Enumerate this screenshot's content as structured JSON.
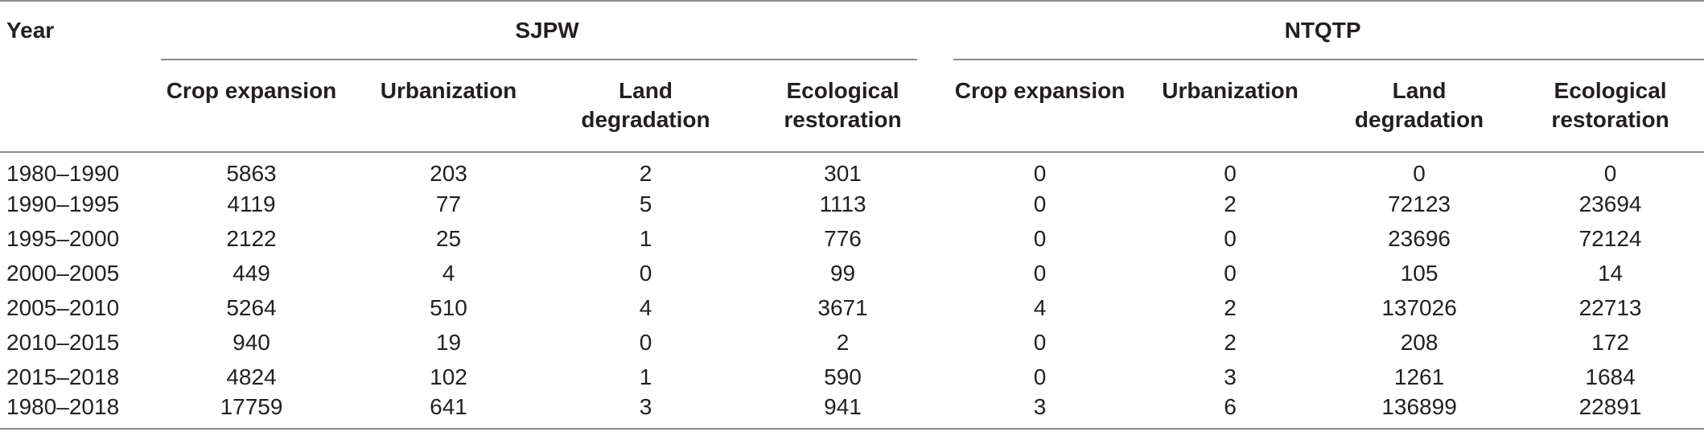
{
  "table": {
    "year_header": "Year",
    "groups": [
      {
        "label": "SJPW"
      },
      {
        "label": "NTQTP"
      }
    ],
    "subheaders": [
      [
        "Crop expansion"
      ],
      [
        "Urbanization"
      ],
      [
        "Land",
        "degradation"
      ],
      [
        "Ecological",
        "restoration"
      ],
      [
        "Crop expansion"
      ],
      [
        "Urbanization"
      ],
      [
        "Land",
        "degradation"
      ],
      [
        "Ecological",
        "restoration"
      ]
    ],
    "rows": [
      {
        "year": "1980–1990",
        "values": [
          "5863",
          "203",
          "2",
          "301",
          "0",
          "0",
          "0",
          "0"
        ]
      },
      {
        "year": "1990–1995",
        "values": [
          "4119",
          "77",
          "5",
          "1113",
          "0",
          "2",
          "72123",
          "23694"
        ]
      },
      {
        "year": "1995–2000",
        "values": [
          "2122",
          "25",
          "1",
          "776",
          "0",
          "0",
          "23696",
          "72124"
        ]
      },
      {
        "year": "2000–2005",
        "values": [
          "449",
          "4",
          "0",
          "99",
          "0",
          "0",
          "105",
          "14"
        ]
      },
      {
        "year": "2005–2010",
        "values": [
          "5264",
          "510",
          "4",
          "3671",
          "4",
          "2",
          "137026",
          "22713"
        ]
      },
      {
        "year": "2010–2015",
        "values": [
          "940",
          "19",
          "0",
          "2",
          "0",
          "2",
          "208",
          "172"
        ]
      },
      {
        "year": "2015–2018",
        "values": [
          "4824",
          "102",
          "1",
          "590",
          "0",
          "3",
          "1261",
          "1684"
        ]
      },
      {
        "year": "1980–2018",
        "values": [
          "17759",
          "641",
          "3",
          "941",
          "3",
          "6",
          "136899",
          "22891"
        ]
      }
    ]
  }
}
